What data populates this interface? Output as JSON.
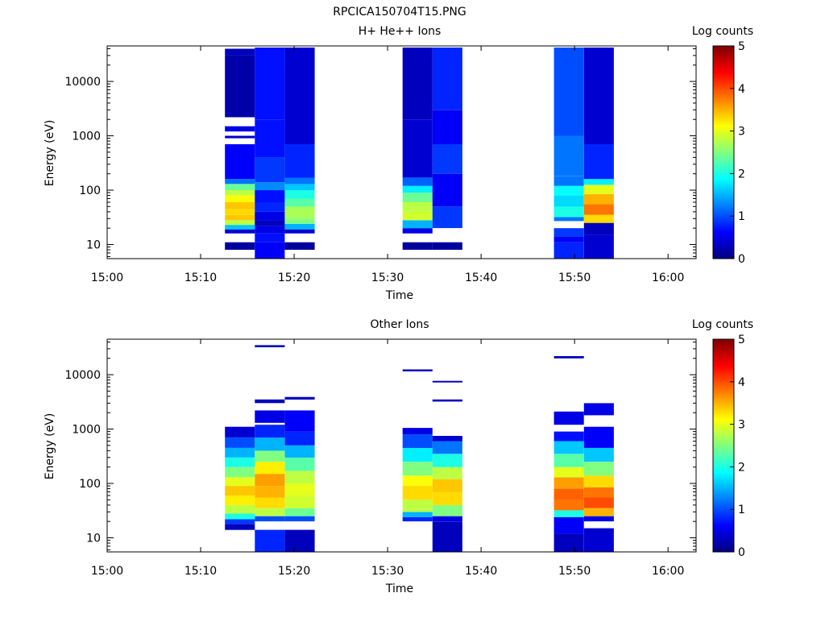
{
  "figure_title": "RPCICA150704T15.PNG",
  "chart_data": [
    {
      "type": "heatmap",
      "title": "H+ He++ Ions",
      "xlabel": "Time",
      "ylabel": "Energy (eV)",
      "y_scale": "log",
      "x_range": [
        "15:00",
        "16:03"
      ],
      "ylim": [
        5.5,
        45000
      ],
      "x_ticks": [
        "15:00",
        "15:10",
        "15:20",
        "15:30",
        "15:40",
        "15:50",
        "16:00"
      ],
      "y_ticks": [
        "10",
        "100",
        "1000",
        "10000"
      ],
      "colorbar": {
        "label": "Log counts",
        "range": [
          0,
          5
        ],
        "ticks": [
          "0",
          "1",
          "2",
          "3",
          "4",
          "5"
        ],
        "colormap": "jet"
      },
      "columns": [
        {
          "start": "15:12.6",
          "end": "15:15.8",
          "ranges": [
            [
              8,
              11,
              0.15
            ],
            [
              16,
              19,
              0.4
            ],
            [
              19,
              23,
              1.6
            ],
            [
              23,
              28,
              2.8
            ],
            [
              28,
              35,
              3.4
            ],
            [
              35,
              45,
              3.3
            ],
            [
              45,
              60,
              3.4
            ],
            [
              60,
              80,
              3.1
            ],
            [
              80,
              100,
              2.8
            ],
            [
              100,
              130,
              2.4
            ],
            [
              130,
              160,
              1.2
            ],
            [
              160,
              700,
              0.6
            ],
            [
              900,
              1000,
              0.4
            ],
            [
              1200,
              1500,
              0.5
            ],
            [
              2200,
              30000,
              0.2
            ],
            [
              30000,
              40000,
              0.3
            ]
          ]
        },
        {
          "start": "15:15.8",
          "end": "15:19.0",
          "ranges": [
            [
              5.5,
              11,
              0.6
            ],
            [
              11,
              16,
              0.7
            ],
            [
              16,
              22,
              0.5
            ],
            [
              22,
              28,
              0.3
            ],
            [
              28,
              40,
              0.5
            ],
            [
              40,
              60,
              0.8
            ],
            [
              60,
              100,
              0.7
            ],
            [
              100,
              140,
              1.3
            ],
            [
              140,
              400,
              0.9
            ],
            [
              400,
              2000,
              0.7
            ],
            [
              2000,
              42000,
              0.7
            ]
          ]
        },
        {
          "start": "15:19.0",
          "end": "15:22.2",
          "ranges": [
            [
              8,
              11,
              0.15
            ],
            [
              16,
              19,
              0.4
            ],
            [
              19,
              24,
              1.5
            ],
            [
              24,
              30,
              2.5
            ],
            [
              30,
              50,
              2.7
            ],
            [
              50,
              70,
              2.3
            ],
            [
              70,
              100,
              2.0
            ],
            [
              100,
              130,
              1.6
            ],
            [
              130,
              170,
              1.2
            ],
            [
              170,
              700,
              0.8
            ],
            [
              700,
              42000,
              0.4
            ]
          ]
        },
        {
          "start": "15:31.6",
          "end": "15:34.8",
          "ranges": [
            [
              8,
              11,
              0.15
            ],
            [
              16,
              20,
              0.5
            ],
            [
              20,
              28,
              1.5
            ],
            [
              28,
              40,
              2.9
            ],
            [
              40,
              60,
              2.8
            ],
            [
              60,
              90,
              2.4
            ],
            [
              90,
              120,
              1.8
            ],
            [
              120,
              170,
              1.1
            ],
            [
              170,
              2000,
              0.4
            ],
            [
              2000,
              42000,
              0.3
            ]
          ]
        },
        {
          "start": "15:34.8",
          "end": "15:38.0",
          "ranges": [
            [
              8,
              11,
              0.15
            ],
            [
              20,
              50,
              0.9
            ],
            [
              50,
              200,
              0.6
            ],
            [
              200,
              700,
              0.9
            ],
            [
              700,
              3000,
              0.6
            ],
            [
              3000,
              42000,
              0.8
            ]
          ]
        },
        {
          "start": "15:47.8",
          "end": "15:51.0",
          "ranges": [
            [
              5.5,
              11,
              0.8
            ],
            [
              11,
              14,
              0.6
            ],
            [
              14,
              20,
              0.9
            ],
            [
              27,
              32,
              1.2
            ],
            [
              32,
              50,
              2.0
            ],
            [
              50,
              80,
              1.7
            ],
            [
              80,
              120,
              1.9
            ],
            [
              120,
              180,
              1.2
            ],
            [
              180,
              1000,
              1.2
            ],
            [
              1000,
              42000,
              1.0
            ]
          ]
        },
        {
          "start": "15:51.0",
          "end": "15:54.2",
          "ranges": [
            [
              5.5,
              15,
              0.4
            ],
            [
              15,
              25,
              0.3
            ],
            [
              25,
              35,
              3.3
            ],
            [
              35,
              55,
              3.8
            ],
            [
              55,
              85,
              3.5
            ],
            [
              85,
              125,
              3.0
            ],
            [
              125,
              160,
              1.8
            ],
            [
              160,
              700,
              0.8
            ],
            [
              700,
              42000,
              0.4
            ]
          ]
        }
      ]
    },
    {
      "type": "heatmap",
      "title": "Other Ions",
      "xlabel": "Time",
      "ylabel": "Energy (eV)",
      "y_scale": "log",
      "x_range": [
        "15:00",
        "16:03"
      ],
      "ylim": [
        5.5,
        45000
      ],
      "x_ticks": [
        "15:00",
        "15:10",
        "15:20",
        "15:30",
        "15:40",
        "15:50",
        "16:00"
      ],
      "y_ticks": [
        "10",
        "100",
        "1000",
        "10000"
      ],
      "colorbar": {
        "label": "Log counts",
        "range": [
          0,
          5
        ],
        "ticks": [
          "0",
          "1",
          "2",
          "3",
          "4",
          "5"
        ],
        "colormap": "jet"
      },
      "columns": [
        {
          "start": "15:12.6",
          "end": "15:15.8",
          "ranges": [
            [
              14,
              18,
              0.3
            ],
            [
              18,
              22,
              0.9
            ],
            [
              22,
              28,
              2.0
            ],
            [
              28,
              40,
              2.8
            ],
            [
              40,
              60,
              3.2
            ],
            [
              60,
              90,
              3.4
            ],
            [
              90,
              130,
              3.0
            ],
            [
              130,
              200,
              2.5
            ],
            [
              200,
              300,
              2.0
            ],
            [
              300,
              450,
              1.5
            ],
            [
              450,
              700,
              1.0
            ],
            [
              700,
              1100,
              0.4
            ]
          ]
        },
        {
          "start": "15:15.8",
          "end": "15:19.0",
          "ranges": [
            [
              5.5,
              14,
              0.8
            ],
            [
              20,
              25,
              1.0
            ],
            [
              25,
              35,
              2.8
            ],
            [
              35,
              55,
              3.3
            ],
            [
              55,
              90,
              3.5
            ],
            [
              90,
              150,
              3.6
            ],
            [
              150,
              250,
              3.2
            ],
            [
              250,
              400,
              2.5
            ],
            [
              400,
              700,
              1.5
            ],
            [
              700,
              1200,
              0.8
            ],
            [
              1300,
              2200,
              0.5
            ],
            [
              3000,
              3500,
              0.3
            ],
            [
              32000,
              35000,
              0.3
            ]
          ]
        },
        {
          "start": "15:19.0",
          "end": "15:22.2",
          "ranges": [
            [
              5.5,
              14,
              0.3
            ],
            [
              20,
              25,
              1.0
            ],
            [
              25,
              35,
              2.4
            ],
            [
              35,
              60,
              2.9
            ],
            [
              60,
              100,
              3.0
            ],
            [
              100,
              170,
              2.8
            ],
            [
              170,
              300,
              2.3
            ],
            [
              300,
              500,
              1.5
            ],
            [
              500,
              900,
              0.8
            ],
            [
              900,
              2200,
              0.6
            ],
            [
              3500,
              3900,
              0.3
            ]
          ]
        },
        {
          "start": "15:31.6",
          "end": "15:34.8",
          "ranges": [
            [
              20,
              24,
              0.8
            ],
            [
              24,
              30,
              1.5
            ],
            [
              30,
              50,
              2.8
            ],
            [
              50,
              90,
              3.3
            ],
            [
              90,
              140,
              3.1
            ],
            [
              140,
              250,
              2.5
            ],
            [
              250,
              450,
              1.8
            ],
            [
              450,
              800,
              1.0
            ],
            [
              800,
              1050,
              0.5
            ],
            [
              11500,
              12500,
              0.3
            ]
          ]
        },
        {
          "start": "15:34.8",
          "end": "15:38.0",
          "ranges": [
            [
              5.5,
              20,
              0.3
            ],
            [
              20,
              25,
              0.5
            ],
            [
              25,
              40,
              2.5
            ],
            [
              40,
              70,
              3.3
            ],
            [
              70,
              120,
              3.4
            ],
            [
              120,
              200,
              2.8
            ],
            [
              200,
              350,
              2.0
            ],
            [
              350,
              600,
              1.2
            ],
            [
              600,
              750,
              0.4
            ],
            [
              3200,
              3500,
              0.3
            ],
            [
              7200,
              7700,
              0.3
            ]
          ]
        },
        {
          "start": "15:47.8",
          "end": "15:51.0",
          "ranges": [
            [
              5.5,
              12,
              0.3
            ],
            [
              12,
              24,
              0.6
            ],
            [
              24,
              32,
              2.0
            ],
            [
              32,
              50,
              3.8
            ],
            [
              50,
              80,
              3.9
            ],
            [
              80,
              130,
              3.6
            ],
            [
              130,
              200,
              3.0
            ],
            [
              200,
              350,
              2.3
            ],
            [
              350,
              600,
              1.6
            ],
            [
              600,
              900,
              0.7
            ],
            [
              1200,
              2100,
              0.5
            ],
            [
              20000,
              22000,
              0.3
            ]
          ]
        },
        {
          "start": "15:51.0",
          "end": "15:54.2",
          "ranges": [
            [
              5.5,
              15,
              0.4
            ],
            [
              20,
              25,
              0.5
            ],
            [
              25,
              35,
              3.5
            ],
            [
              35,
              55,
              4.0
            ],
            [
              55,
              85,
              3.8
            ],
            [
              85,
              140,
              3.3
            ],
            [
              140,
              250,
              2.5
            ],
            [
              250,
              450,
              1.6
            ],
            [
              450,
              1100,
              0.6
            ],
            [
              1800,
              3000,
              0.5
            ]
          ]
        }
      ]
    }
  ]
}
